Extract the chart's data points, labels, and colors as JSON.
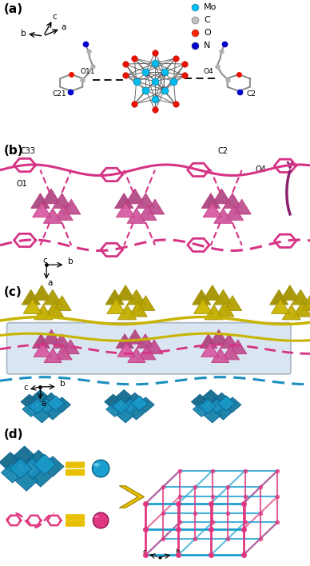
{
  "panel_a": {
    "label": "(a)",
    "legend": [
      {
        "color": "#00BFFF",
        "label": "Mo"
      },
      {
        "color": "#C0C0C0",
        "label": "C"
      },
      {
        "color": "#FF2200",
        "label": "O"
      },
      {
        "color": "#0000CD",
        "label": "N"
      }
    ],
    "background": "#FFFFFF"
  },
  "panel_b": {
    "label": "(b)",
    "pink_color": "#D63385",
    "cluster_color": "#C0307A",
    "background": "#FFFFFF"
  },
  "panel_c": {
    "label": "(c)",
    "yellow_color": "#C8B400",
    "pink_color": "#D63385",
    "blue_color": "#1A8FC0",
    "highlight_box": "#C5D8EA",
    "background": "#FFFFFF"
  },
  "panel_d": {
    "label": "(d)",
    "cyan_color": "#1A9FD0",
    "pink_color": "#E03880",
    "yellow_color": "#E8C000",
    "background": "#FFFFFF"
  },
  "fig_width": 3.88,
  "fig_height": 7.08,
  "dpi": 100
}
